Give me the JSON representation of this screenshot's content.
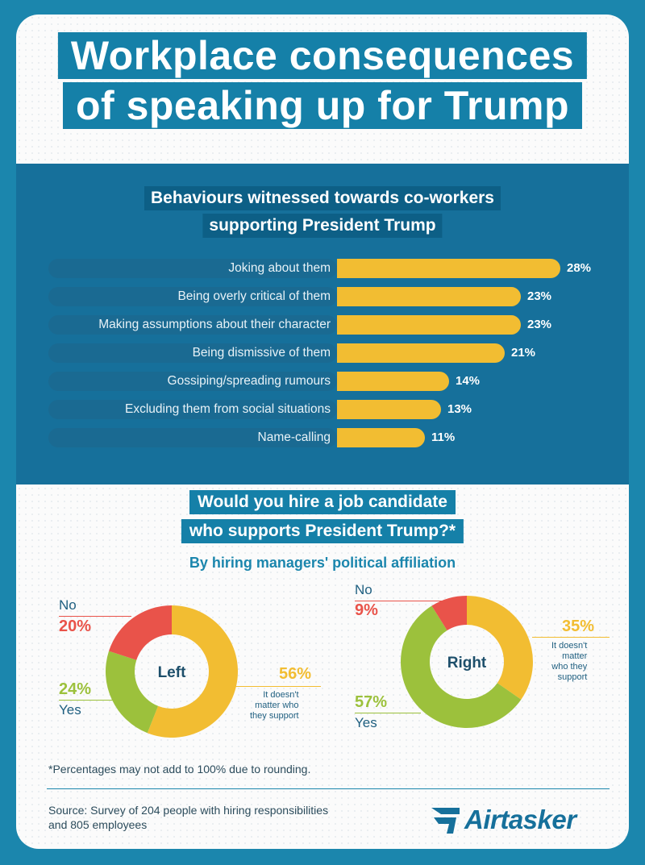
{
  "title": {
    "line1": "Workplace consequences",
    "line2": "of speaking up for Trump"
  },
  "behaviours": {
    "title_line1": "Behaviours witnessed towards co-workers",
    "title_line2": "supporting President Trump",
    "items": [
      {
        "label": "Joking about them",
        "display": "28%"
      },
      {
        "label": "Being overly critical of them",
        "display": "23%"
      },
      {
        "label": "Making assumptions about their character",
        "display": "23%"
      },
      {
        "label": "Being dismissive of them",
        "display": "21%"
      },
      {
        "label": "Gossiping/spreading rumours",
        "display": "14%"
      },
      {
        "label": "Excluding them from social situations",
        "display": "13%"
      },
      {
        "label": "Name-calling",
        "display": "11%"
      }
    ]
  },
  "hiring": {
    "q_line1": "Would you hire a job candidate",
    "q_line2": "who supports President Trump?*",
    "subtitle": "By hiring managers' political affiliation",
    "left": {
      "center": "Left",
      "no_label": "No",
      "no_pct": "20%",
      "yes_label": "Yes",
      "yes_pct": "24%",
      "dm_pct": "56%",
      "dm_line1": "It doesn't",
      "dm_line2": "matter who",
      "dm_line3": "they support"
    },
    "right": {
      "center": "Right",
      "no_label": "No",
      "no_pct": "9%",
      "yes_label": "Yes",
      "yes_pct": "57%",
      "dm_pct": "35%",
      "dm_line1": "It doesn't",
      "dm_line2": "matter",
      "dm_line3": "who they",
      "dm_line4": "support"
    }
  },
  "footnote": "*Percentages may not add to 100% due to rounding.",
  "source_line1": "Source: Survey of 204 people with hiring responsibilities",
  "source_line2": "and 805 employees",
  "logo_text": "Airtasker",
  "colors": {
    "accent_blue": "#1580a8",
    "bar_yellow": "#f2bd32",
    "no_red": "#e9534a",
    "yes_green": "#9cc13c",
    "dm_yellow": "#f2bd32"
  },
  "chart_data": [
    {
      "type": "bar",
      "orientation": "horizontal",
      "title": "Behaviours witnessed towards co-workers supporting President Trump",
      "categories": [
        "Joking about them",
        "Being overly critical of them",
        "Making assumptions about their character",
        "Being dismissive of them",
        "Gossiping/spreading rumours",
        "Excluding them from social situations",
        "Name-calling"
      ],
      "values": [
        28,
        23,
        23,
        21,
        14,
        13,
        11
      ],
      "unit": "%",
      "xlim": [
        0,
        28
      ]
    },
    {
      "type": "pie",
      "variant": "donut",
      "title": "Left",
      "categories": [
        "It doesn't matter who they support",
        "Yes",
        "No"
      ],
      "values": [
        56,
        24,
        20
      ],
      "colors": [
        "#f2bd32",
        "#9cc13c",
        "#e9534a"
      ]
    },
    {
      "type": "pie",
      "variant": "donut",
      "title": "Right",
      "categories": [
        "It doesn't matter who they support",
        "Yes",
        "No"
      ],
      "values": [
        35,
        57,
        9
      ],
      "colors": [
        "#f2bd32",
        "#9cc13c",
        "#e9534a"
      ]
    }
  ]
}
